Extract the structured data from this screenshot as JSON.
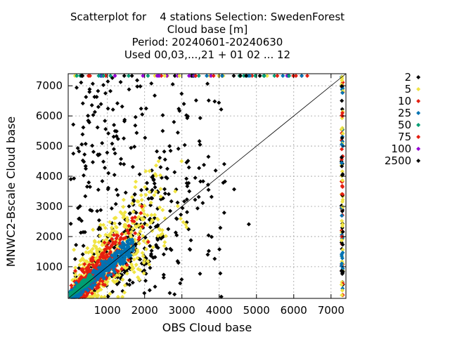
{
  "title_lines": [
    "Scatterplot for    4 stations Selection: SwedenForest",
    "Cloud base [m]",
    "Period: 20240601-20240630",
    "Used 00,03,...,21 + 01 02 ... 12"
  ],
  "chart_data": {
    "type": "scatter",
    "xlabel": "OBS Cloud base",
    "ylabel": "MNWC2-Bscale Cloud base",
    "xlim": [
      -50,
      7400
    ],
    "ylim": [
      -50,
      7400
    ],
    "xticks": [
      1000,
      2000,
      3000,
      4000,
      5000,
      6000,
      7000
    ],
    "yticks": [
      1000,
      2000,
      3000,
      4000,
      5000,
      6000,
      7000
    ],
    "grid": true,
    "diagonal_line": true,
    "legend_position": "right",
    "series": [
      {
        "name": "2",
        "color": "#000000"
      },
      {
        "name": "5",
        "color": "#f0e442"
      },
      {
        "name": "10",
        "color": "#e51e10"
      },
      {
        "name": "25",
        "color": "#0072b2"
      },
      {
        "name": "50",
        "color": "#009e73"
      },
      {
        "name": "75",
        "color": "#e51e10"
      },
      {
        "name": "100",
        "color": "#9400d3"
      },
      {
        "name": "2500",
        "color": "#000000"
      }
    ]
  }
}
